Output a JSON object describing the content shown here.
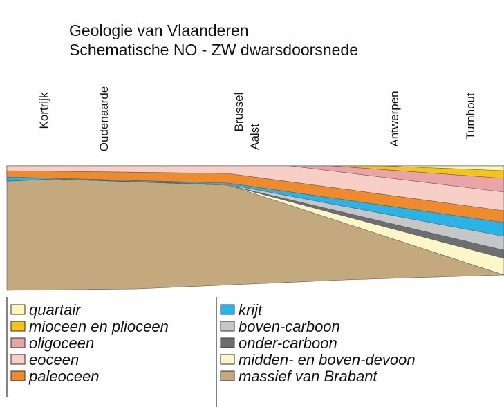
{
  "header": {
    "title": "Geologie van Vlaanderen",
    "subtitle": "Schematische NO - ZW dwarsdoorsnede"
  },
  "locations": [
    "Kortrijk",
    "Oudenaarde",
    "Brussel",
    "Aalst",
    "Antwerpen",
    "Turnhout"
  ],
  "legend": [
    "quartair",
    "mioceen en plioceen",
    "oligoceen",
    "eoceen",
    "paleoceen",
    "krijt",
    "boven-carboon",
    "onder-carboon",
    "midden- en boven-devoon",
    "massief van Brabant"
  ]
}
